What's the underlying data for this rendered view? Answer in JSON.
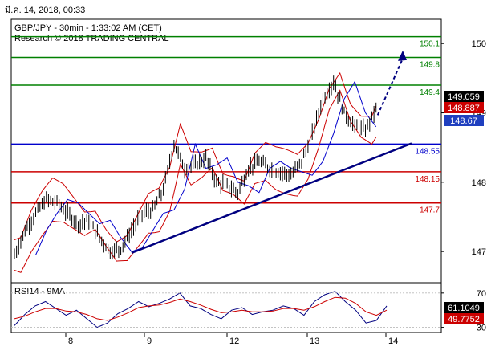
{
  "timestamp": "มี.ค. 14, 2018, 00:33",
  "header": {
    "line1": "GBP/JPY - 30min - 1:33:02 AM (CET)",
    "line2": "Research © 2018 TRADING CENTRAL"
  },
  "colors": {
    "green": "#008000",
    "red": "#cc0000",
    "blue": "#0000cc",
    "navy": "#000080",
    "price_badge": "#000000",
    "red_badge": "#cc0000",
    "blue_badge": "#1f3fbf"
  },
  "chart_data": [
    {
      "type": "line",
      "title": "",
      "y_axis": {
        "ticks": [
          "150",
          "149",
          "148",
          "147"
        ],
        "range": [
          146.55,
          150.35
        ]
      },
      "x_axis": {
        "ticks": [
          "8",
          "9",
          "12",
          "13",
          "14"
        ]
      },
      "levels": [
        {
          "value": 150.1,
          "label": "150.1",
          "color": "green"
        },
        {
          "value": 149.8,
          "label": "149.8",
          "color": "green"
        },
        {
          "value": 149.4,
          "label": "149.4",
          "color": "green"
        },
        {
          "value": 148.55,
          "label": "148.55",
          "color": "blue"
        },
        {
          "value": 148.15,
          "label": "148.15",
          "color": "red"
        },
        {
          "value": 147.7,
          "label": "147.7",
          "color": "red"
        }
      ],
      "badges": [
        {
          "value": 149.059,
          "label": "149.059",
          "kind": "price"
        },
        {
          "value": 148.887,
          "label": "148.887",
          "kind": "red"
        },
        {
          "value": 148.67,
          "label": "148.67",
          "kind": "blue"
        }
      ],
      "trendline": {
        "start": [
          "9",
          146.98
        ],
        "end": [
          "14",
          148.56
        ]
      },
      "price_series": [
        {
          "t": 0,
          "v": 146.95
        },
        {
          "t": 2,
          "v": 147.3
        },
        {
          "t": 4,
          "v": 147.55
        },
        {
          "t": 6,
          "v": 147.75
        },
        {
          "t": 8,
          "v": 147.7
        },
        {
          "t": 10,
          "v": 147.55
        },
        {
          "t": 12,
          "v": 147.4
        },
        {
          "t": 14,
          "v": 147.45
        },
        {
          "t": 16,
          "v": 147.2
        },
        {
          "t": 18,
          "v": 147.0
        },
        {
          "t": 20,
          "v": 147.05
        },
        {
          "t": 22,
          "v": 147.3
        },
        {
          "t": 24,
          "v": 147.55
        },
        {
          "t": 26,
          "v": 147.6
        },
        {
          "t": 28,
          "v": 147.9
        },
        {
          "t": 30,
          "v": 148.55
        },
        {
          "t": 32,
          "v": 148.2
        },
        {
          "t": 34,
          "v": 148.25
        },
        {
          "t": 36,
          "v": 148.35
        },
        {
          "t": 38,
          "v": 148.0
        },
        {
          "t": 40,
          "v": 147.95
        },
        {
          "t": 42,
          "v": 147.85
        },
        {
          "t": 44,
          "v": 148.2
        },
        {
          "t": 46,
          "v": 148.3
        },
        {
          "t": 48,
          "v": 148.2
        },
        {
          "t": 50,
          "v": 148.15
        },
        {
          "t": 52,
          "v": 148.1
        },
        {
          "t": 54,
          "v": 148.3
        },
        {
          "t": 56,
          "v": 148.7
        },
        {
          "t": 58,
          "v": 149.2
        },
        {
          "t": 60,
          "v": 149.45
        },
        {
          "t": 62,
          "v": 149.0
        },
        {
          "t": 64,
          "v": 148.8
        },
        {
          "t": 66,
          "v": 148.75
        },
        {
          "t": 68,
          "v": 149.06
        }
      ],
      "forecast_arrow": {
        "from": 149.06,
        "to": 149.9
      }
    },
    {
      "type": "line",
      "title": "RSI14 - 9MA",
      "y_axis": {
        "ticks": [
          "70",
          "30"
        ],
        "range": [
          24,
          82
        ]
      },
      "badges": [
        {
          "value": 61.1049,
          "label": "61.1049",
          "kind": "price"
        },
        {
          "value": 49.7752,
          "label": "49.7752",
          "kind": "red"
        }
      ],
      "series": [
        {
          "name": "",
          "color": "navy",
          "values": [
            32,
            45,
            55,
            60,
            52,
            44,
            50,
            40,
            30,
            35,
            46,
            52,
            60,
            54,
            58,
            63,
            70,
            55,
            52,
            45,
            40,
            50,
            53,
            45,
            48,
            50,
            55,
            52,
            44,
            60,
            68,
            72,
            60,
            50,
            35,
            38,
            55
          ]
        },
        {
          "name": "",
          "color": "red",
          "values": [
            40,
            43,
            48,
            52,
            52,
            49,
            48,
            45,
            40,
            38,
            42,
            47,
            53,
            55,
            56,
            59,
            63,
            60,
            56,
            51,
            47,
            48,
            50,
            48,
            48,
            49,
            52,
            52,
            50,
            54,
            60,
            65,
            64,
            58,
            48,
            44,
            50
          ]
        }
      ]
    }
  ]
}
